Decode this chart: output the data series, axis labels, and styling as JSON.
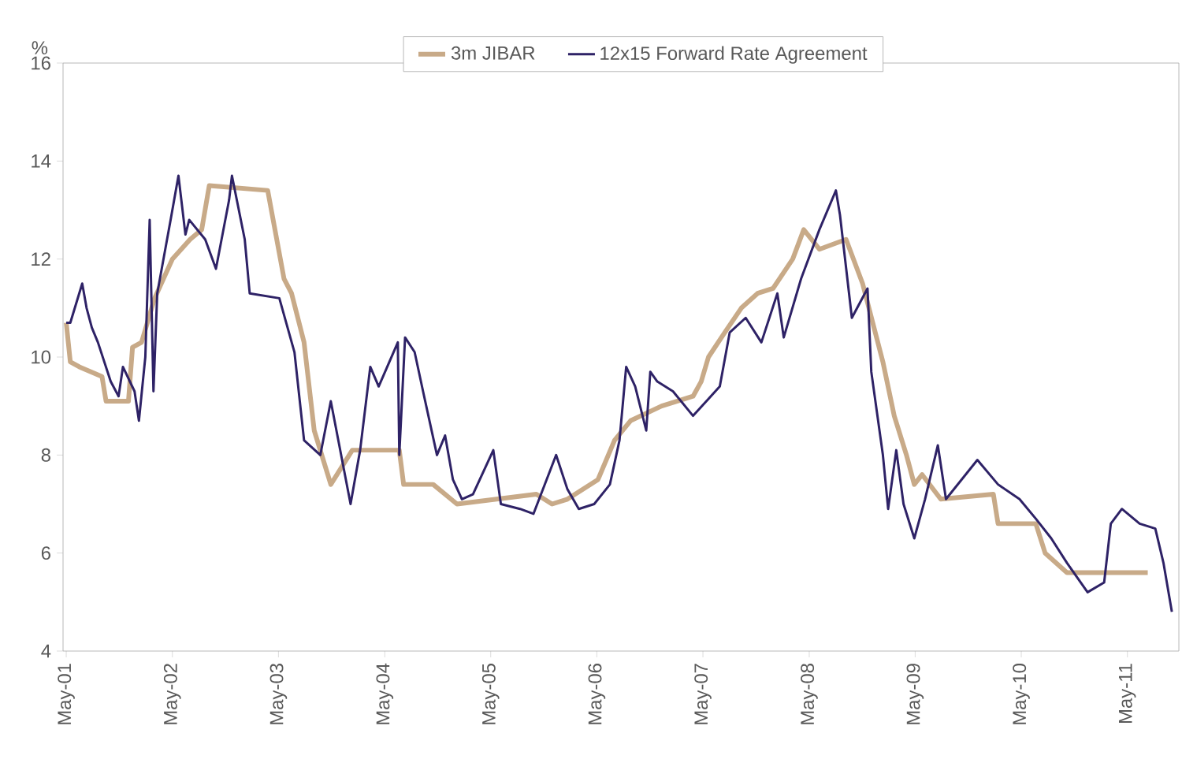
{
  "chart_data": {
    "type": "line",
    "ylabel": "%",
    "legend": "top",
    "grid": false,
    "marker": "none",
    "line_style": "solid",
    "xlim": [
      "2001-04-20",
      "2011-10-25"
    ],
    "ylim": [
      4,
      16
    ],
    "yticks": [
      4,
      6,
      8,
      10,
      12,
      14,
      16
    ],
    "xticks": [
      {
        "value": "2001-05",
        "label": "May-01"
      },
      {
        "value": "2002-05",
        "label": "May-02"
      },
      {
        "value": "2003-05",
        "label": "May-03"
      },
      {
        "value": "2004-05",
        "label": "May-04"
      },
      {
        "value": "2005-05",
        "label": "May-05"
      },
      {
        "value": "2006-05",
        "label": "May-06"
      },
      {
        "value": "2007-05",
        "label": "May-07"
      },
      {
        "value": "2008-05",
        "label": "May-08"
      },
      {
        "value": "2009-05",
        "label": "May-09"
      },
      {
        "value": "2010-05",
        "label": "May-10"
      },
      {
        "value": "2011-05",
        "label": "May-11"
      }
    ],
    "series": [
      {
        "name": "3m JIBAR",
        "color": "#c8aa88",
        "x": [
          "2001-05-01",
          "2001-05-15",
          "2001-06-15",
          "2001-09-01",
          "2001-09-15",
          "2001-11-01",
          "2001-12-01",
          "2001-12-15",
          "2002-01-15",
          "2002-03-01",
          "2002-05-01",
          "2002-07-01",
          "2002-08-10",
          "2002-09-05",
          "2003-03-25",
          "2003-05-20",
          "2003-06-15",
          "2003-07-28",
          "2003-09-01",
          "2003-10-28",
          "2004-01-10",
          "2004-06-20",
          "2004-07-05",
          "2004-10-15",
          "2005-01-05",
          "2005-10-05",
          "2005-11-28",
          "2006-01-20",
          "2006-05-05",
          "2006-07-01",
          "2006-08-25",
          "2006-12-10",
          "2007-03-28",
          "2007-04-25",
          "2007-05-20",
          "2007-07-15",
          "2007-09-10",
          "2007-11-05",
          "2007-12-28",
          "2008-03-05",
          "2008-04-12",
          "2008-06-05",
          "2008-09-05",
          "2008-11-01",
          "2009-01-10",
          "2009-02-18",
          "2009-04-01",
          "2009-04-28",
          "2009-05-25",
          "2009-07-28",
          "2010-01-25",
          "2010-02-10",
          "2010-06-20",
          "2010-07-22",
          "2010-10-05",
          "2011-07-10"
        ],
        "values": [
          10.7,
          9.9,
          9.8,
          9.6,
          9.1,
          9.1,
          9.1,
          10.2,
          10.3,
          11.2,
          12.0,
          12.4,
          12.6,
          13.5,
          13.4,
          11.6,
          11.3,
          10.3,
          8.5,
          7.4,
          8.1,
          8.1,
          7.4,
          7.4,
          7.0,
          7.2,
          7.0,
          7.1,
          7.5,
          8.3,
          8.7,
          9.0,
          9.2,
          9.5,
          10.0,
          10.5,
          11.0,
          11.3,
          11.4,
          12.0,
          12.6,
          12.2,
          12.4,
          11.5,
          9.9,
          8.8,
          8.0,
          7.4,
          7.6,
          7.1,
          7.2,
          6.6,
          6.6,
          6.0,
          5.6,
          5.6
        ]
      },
      {
        "name": "12x15 Forward Rate Agreement",
        "color": "#2e2266",
        "x": [
          "2001-05-01",
          "2001-05-15",
          "2001-06-25",
          "2001-07-10",
          "2001-07-28",
          "2001-08-18",
          "2001-10-01",
          "2001-10-28",
          "2001-11-12",
          "2001-12-22",
          "2002-01-06",
          "2002-01-28",
          "2002-02-12",
          "2002-02-25",
          "2002-03-10",
          "2002-04-25",
          "2002-05-22",
          "2002-06-15",
          "2002-06-28",
          "2002-08-22",
          "2002-09-28",
          "2002-11-12",
          "2002-11-22",
          "2003-01-05",
          "2003-01-22",
          "2003-05-04",
          "2003-06-25",
          "2003-07-28",
          "2003-09-22",
          "2003-10-28",
          "2004-01-04",
          "2004-02-06",
          "2004-03-12",
          "2004-04-10",
          "2004-06-15",
          "2004-06-20",
          "2004-07-10",
          "2004-08-12",
          "2004-09-10",
          "2004-10-28",
          "2004-11-25",
          "2004-12-22",
          "2005-01-22",
          "2005-03-01",
          "2005-05-10",
          "2005-06-05",
          "2005-08-10",
          "2005-09-25",
          "2005-12-12",
          "2006-01-20",
          "2006-02-28",
          "2006-04-22",
          "2006-06-15",
          "2006-07-18",
          "2006-08-10",
          "2006-09-10",
          "2006-10-18",
          "2006-11-01",
          "2006-11-25",
          "2007-01-18",
          "2007-03-28",
          "2007-06-28",
          "2007-08-01",
          "2007-09-25",
          "2007-11-18",
          "2008-01-12",
          "2008-02-03",
          "2008-04-03",
          "2008-06-05",
          "2008-08-01",
          "2008-08-15",
          "2008-09-25",
          "2008-11-18",
          "2008-12-01",
          "2009-01-10",
          "2009-01-28",
          "2009-02-25",
          "2009-03-22",
          "2009-04-28",
          "2009-06-04",
          "2009-07-18",
          "2009-08-15",
          "2009-12-01",
          "2010-02-10",
          "2010-04-25",
          "2010-06-20",
          "2010-08-12",
          "2010-10-05",
          "2010-12-15",
          "2011-02-10",
          "2011-03-05",
          "2011-04-12",
          "2011-06-12",
          "2011-08-05",
          "2011-09-02",
          "2011-10-01"
        ],
        "values": [
          10.7,
          10.7,
          11.5,
          11.0,
          10.6,
          10.3,
          9.5,
          9.2,
          9.8,
          9.3,
          8.7,
          10.0,
          12.8,
          9.3,
          11.3,
          12.8,
          13.7,
          12.5,
          12.8,
          12.4,
          11.8,
          13.2,
          13.7,
          12.4,
          11.3,
          11.2,
          10.1,
          8.3,
          8.0,
          9.1,
          7.0,
          8.1,
          9.8,
          9.4,
          10.3,
          8.0,
          10.4,
          10.1,
          9.3,
          8.0,
          8.4,
          7.5,
          7.1,
          7.2,
          8.1,
          7.0,
          6.9,
          6.8,
          8.0,
          7.3,
          6.9,
          7.0,
          7.4,
          8.3,
          9.8,
          9.4,
          8.5,
          9.7,
          9.5,
          9.3,
          8.8,
          9.4,
          10.5,
          10.8,
          10.3,
          11.3,
          10.4,
          11.6,
          12.6,
          13.4,
          12.9,
          10.8,
          11.4,
          9.7,
          8.0,
          6.9,
          8.1,
          7.0,
          6.3,
          7.1,
          8.2,
          7.1,
          7.9,
          7.4,
          7.1,
          6.7,
          6.3,
          5.8,
          5.2,
          5.4,
          6.6,
          6.9,
          6.6,
          6.5,
          5.8,
          4.8
        ]
      }
    ]
  }
}
